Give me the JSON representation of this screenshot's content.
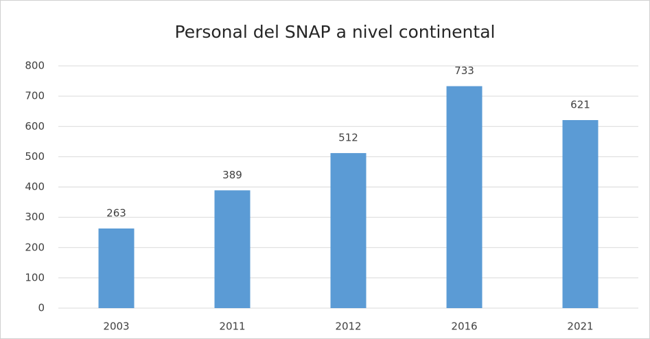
{
  "chart_data": {
    "type": "bar",
    "title": "Personal del SNAP a nivel continental",
    "categories": [
      "2003",
      "2011",
      "2012",
      "2016",
      "2021"
    ],
    "values": [
      263,
      389,
      512,
      733,
      621
    ],
    "color": "#5b9bd5",
    "ylim": [
      0,
      800
    ],
    "yticks": [
      0,
      100,
      200,
      300,
      400,
      500,
      600,
      700,
      800
    ],
    "grid": true,
    "data_labels": true
  }
}
